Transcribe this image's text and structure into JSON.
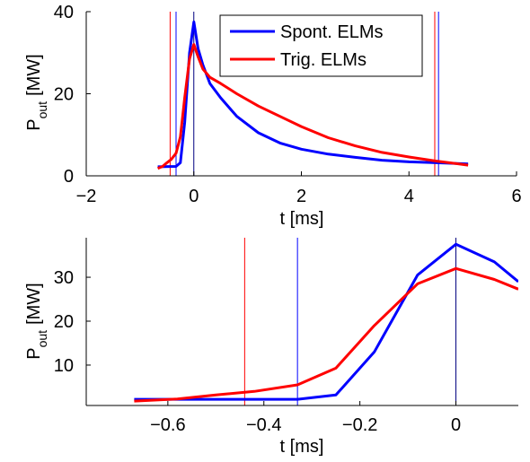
{
  "chart_data": [
    {
      "type": "line",
      "xlabel": "t [ms]",
      "ylabel_main": "P",
      "ylabel_sub": "out",
      "ylabel_unit": "[MW]",
      "xlim": [
        -2,
        6
      ],
      "ylim": [
        0,
        40
      ],
      "xticks": [
        -2,
        0,
        2,
        4,
        6
      ],
      "xtick_labels": [
        "−2",
        "0",
        "2",
        "4",
        "6"
      ],
      "yticks": [
        0,
        20,
        40
      ],
      "ytick_labels": [
        "0",
        "20",
        "40"
      ],
      "grid": false,
      "legend": {
        "placement": "top-right",
        "entries": [
          "Spont. ELMs",
          "Trig. ELMs"
        ]
      },
      "series": [
        {
          "name": "Spont. ELMs",
          "color": "#0000ff",
          "x": [
            -0.67,
            -0.33,
            -0.25,
            -0.17,
            -0.08,
            0,
            0.08,
            0.17,
            0.3,
            0.5,
            0.8,
            1.2,
            1.6,
            2,
            2.5,
            3,
            3.5,
            4,
            4.5,
            5.1
          ],
          "y": [
            2.2,
            2.3,
            3.2,
            13,
            30,
            37.5,
            31,
            27,
            22.5,
            19,
            14.5,
            10.5,
            8,
            6.5,
            5.3,
            4.5,
            3.8,
            3.4,
            3.2,
            2.9
          ]
        },
        {
          "name": "Trig. ELMs",
          "color": "#ff0000",
          "x": [
            -0.67,
            -0.58,
            -0.5,
            -0.42,
            -0.33,
            -0.25,
            -0.17,
            -0.08,
            0,
            0.08,
            0.17,
            0.3,
            0.5,
            0.8,
            1.2,
            1.6,
            2,
            2.5,
            3,
            3.5,
            4,
            4.5,
            5.1
          ],
          "y": [
            1.8,
            2.3,
            3.2,
            4,
            5.5,
            9.5,
            19,
            28.5,
            32,
            29,
            26,
            24,
            22.5,
            20,
            17,
            14.5,
            12,
            9.3,
            7.3,
            5.7,
            4.6,
            3.6,
            2.6
          ]
        }
      ],
      "vlines": [
        {
          "x": -0.44,
          "color": "#ff0000"
        },
        {
          "x": -0.33,
          "color": "#0000ff"
        },
        {
          "x": 0,
          "color": "#000080"
        },
        {
          "x": 4.48,
          "color": "#ff0000"
        },
        {
          "x": 4.55,
          "color": "#0000ff"
        }
      ]
    },
    {
      "type": "line",
      "xlabel": "t [ms]",
      "ylabel_main": "P",
      "ylabel_sub": "out",
      "ylabel_unit": "[MW]",
      "xlim": [
        -0.77,
        0.13
      ],
      "ylim": [
        0.8,
        39
      ],
      "xticks": [
        -0.6,
        -0.4,
        -0.2,
        0
      ],
      "xtick_labels": [
        "−0.6",
        "−0.4",
        "−0.2",
        "0"
      ],
      "yticks": [
        10,
        20,
        30
      ],
      "ytick_labels": [
        "10",
        "20",
        "30"
      ],
      "grid": false,
      "series": [
        {
          "name": "Spont. ELMs",
          "color": "#0000ff",
          "x": [
            -0.67,
            -0.58,
            -0.5,
            -0.42,
            -0.33,
            -0.25,
            -0.17,
            -0.08,
            0,
            0.08,
            0.13
          ],
          "y": [
            2.2,
            2.2,
            2.2,
            2.2,
            2.2,
            3.2,
            13,
            30.5,
            37.5,
            33.5,
            29
          ]
        },
        {
          "name": "Trig. ELMs",
          "color": "#ff0000",
          "x": [
            -0.67,
            -0.58,
            -0.5,
            -0.42,
            -0.33,
            -0.25,
            -0.17,
            -0.08,
            0,
            0.08,
            0.13
          ],
          "y": [
            1.8,
            2.3,
            3.2,
            4,
            5.5,
            9.3,
            19,
            28.5,
            32,
            29.5,
            27.3
          ]
        }
      ],
      "vlines": [
        {
          "x": -0.44,
          "color": "#ff0000"
        },
        {
          "x": -0.33,
          "color": "#0000ff"
        },
        {
          "x": 0,
          "color": "#000080"
        }
      ]
    }
  ]
}
